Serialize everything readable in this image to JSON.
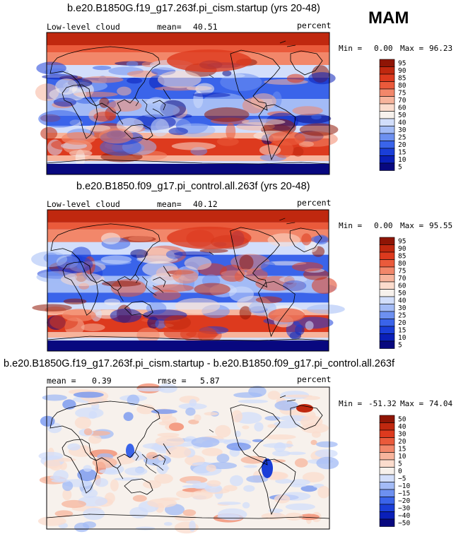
{
  "season": "MAM",
  "colors": {
    "scale": [
      "#08087f",
      "#0a1fb8",
      "#1a3ed8",
      "#3a64ea",
      "#6d90f0",
      "#a3bbf6",
      "#d2defb",
      "#f7f1ec",
      "#fbdccd",
      "#f7b49c",
      "#f2876a",
      "#ea5a3b",
      "#dd3a1e",
      "#c0280f",
      "#8f1505"
    ],
    "diff_scale": [
      "#08087f",
      "#0a1fb8",
      "#1a3ed8",
      "#3a64ea",
      "#6d90f0",
      "#a3bbf6",
      "#d2defb",
      "#f7f1ec",
      "#fbdccd",
      "#f7b49c",
      "#f2876a",
      "#ea5a3b",
      "#dd3a1e",
      "#c0280f",
      "#8f1505"
    ]
  },
  "panels": [
    {
      "title": "b.e20.B1850G.f19_g17.263f.pi_cism.startup (yrs 20-48)",
      "variable": "Low-level cloud",
      "stat1_label": "mean=",
      "stat1_value": "40.51",
      "stat2_label": "",
      "stat2_value": "",
      "units": "percent",
      "min_label": "Min =",
      "min_value": "0.00",
      "max_label": "Max =",
      "max_value": "96.23",
      "colorbar_levels": [
        "95",
        "90",
        "85",
        "80",
        "75",
        "70",
        "60",
        "50",
        "40",
        "30",
        "25",
        "20",
        "15",
        "10",
        "5"
      ]
    },
    {
      "title": "b.e20.B1850.f09_g17.pi_control.all.263f (yrs 20-48)",
      "variable": "Low-level cloud",
      "stat1_label": "mean=",
      "stat1_value": "40.12",
      "stat2_label": "",
      "stat2_value": "",
      "units": "percent",
      "min_label": "Min =",
      "min_value": "0.00",
      "max_label": "Max =",
      "max_value": "95.55",
      "colorbar_levels": [
        "95",
        "90",
        "85",
        "80",
        "75",
        "70",
        "60",
        "50",
        "40",
        "30",
        "25",
        "20",
        "15",
        "10",
        "5"
      ]
    },
    {
      "title": "b.e20.B1850G.f19_g17.263f.pi_cism.startup - b.e20.B1850.f09_g17.pi_control.all.263f",
      "variable": "",
      "stat1_label": "mean =",
      "stat1_value": "0.39",
      "stat2_label": "rmse =",
      "stat2_value": "5.87",
      "units": "percent",
      "min_label": "Min =",
      "min_value": "-51.32",
      "max_label": "Max =",
      "max_value": "74.04",
      "colorbar_levels": [
        "50",
        "40",
        "30",
        "20",
        "15",
        "10",
        "5",
        "0",
        "−5",
        "−10",
        "−15",
        "−20",
        "−30",
        "−40",
        "−50"
      ]
    }
  ],
  "chart_data": [
    {
      "type": "heatmap",
      "title": "b.e20.B1850G.f19_g17.263f.pi_cism.startup (yrs 20-48)",
      "variable": "Low-level cloud",
      "units": "percent",
      "mean": 40.51,
      "min": 0.0,
      "max": 96.23,
      "contour_levels": [
        5,
        10,
        15,
        20,
        25,
        30,
        40,
        50,
        60,
        70,
        75,
        80,
        85,
        90,
        95
      ],
      "colormap": "blue-white-red",
      "xlabel": "",
      "ylabel": ""
    },
    {
      "type": "heatmap",
      "title": "b.e20.B1850.f09_g17.pi_control.all.263f (yrs 20-48)",
      "variable": "Low-level cloud",
      "units": "percent",
      "mean": 40.12,
      "min": 0.0,
      "max": 95.55,
      "contour_levels": [
        5,
        10,
        15,
        20,
        25,
        30,
        40,
        50,
        60,
        70,
        75,
        80,
        85,
        90,
        95
      ],
      "colormap": "blue-white-red",
      "xlabel": "",
      "ylabel": ""
    },
    {
      "type": "heatmap",
      "title": "b.e20.B1850G.f19_g17.263f.pi_cism.startup - b.e20.B1850.f09_g17.pi_control.all.263f",
      "units": "percent",
      "mean": 0.39,
      "rmse": 5.87,
      "min": -51.32,
      "max": 74.04,
      "contour_levels": [
        -50,
        -40,
        -30,
        -20,
        -15,
        -10,
        -5,
        0,
        5,
        10,
        15,
        20,
        30,
        40,
        50
      ],
      "colormap": "blue-white-red",
      "xlabel": "",
      "ylabel": ""
    }
  ]
}
